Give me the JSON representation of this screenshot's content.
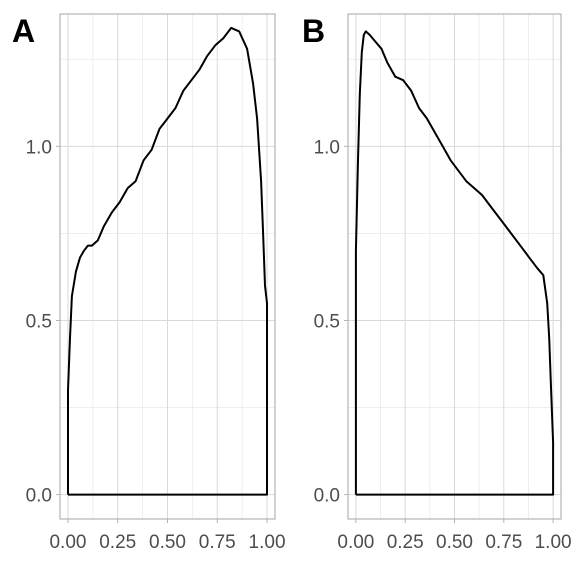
{
  "chart_data": [
    {
      "type": "line",
      "panel_tag": "A",
      "xlim": [
        -0.04,
        1.04
      ],
      "ylim": [
        -0.07,
        1.38
      ],
      "x_ticks": [
        0,
        0.25,
        0.5,
        0.75,
        1
      ],
      "x_tick_labels": [
        "0.00",
        "0.25",
        "0.50",
        "0.75",
        "1.00"
      ],
      "y_ticks": [
        0,
        0.5,
        1
      ],
      "y_tick_labels": [
        "0.0",
        "0.5",
        "1.0"
      ],
      "grid": true,
      "x": [
        0,
        0,
        0.01,
        0.02,
        0.04,
        0.06,
        0.08,
        0.1,
        0.12,
        0.15,
        0.18,
        0.22,
        0.26,
        0.3,
        0.34,
        0.38,
        0.42,
        0.46,
        0.5,
        0.54,
        0.58,
        0.62,
        0.66,
        0.7,
        0.74,
        0.78,
        0.82,
        0.86,
        0.9,
        0.93,
        0.95,
        0.97,
        0.98,
        0.99,
        1,
        1,
        0
      ],
      "y": [
        0,
        0.3,
        0.45,
        0.57,
        0.64,
        0.68,
        0.7,
        0.715,
        0.715,
        0.73,
        0.77,
        0.81,
        0.84,
        0.88,
        0.9,
        0.96,
        0.99,
        1.05,
        1.08,
        1.11,
        1.16,
        1.19,
        1.22,
        1.26,
        1.29,
        1.31,
        1.34,
        1.33,
        1.28,
        1.18,
        1.08,
        0.9,
        0.75,
        0.6,
        0.55,
        0,
        0
      ]
    },
    {
      "type": "line",
      "panel_tag": "B",
      "xlim": [
        -0.04,
        1.04
      ],
      "ylim": [
        -0.07,
        1.38
      ],
      "x_ticks": [
        0,
        0.25,
        0.5,
        0.75,
        1
      ],
      "x_tick_labels": [
        "0.00",
        "0.25",
        "0.50",
        "0.75",
        "1.00"
      ],
      "y_ticks": [
        0,
        0.5,
        1
      ],
      "y_tick_labels": [
        "0.0",
        "0.5",
        "1.0"
      ],
      "grid": true,
      "x": [
        0,
        0,
        0.01,
        0.02,
        0.03,
        0.04,
        0.05,
        0.07,
        0.1,
        0.13,
        0.16,
        0.2,
        0.24,
        0.28,
        0.32,
        0.36,
        0.4,
        0.44,
        0.48,
        0.52,
        0.56,
        0.6,
        0.64,
        0.68,
        0.72,
        0.76,
        0.8,
        0.84,
        0.88,
        0.92,
        0.95,
        0.97,
        0.98,
        0.99,
        1,
        1,
        0
      ],
      "y": [
        0,
        0.7,
        0.95,
        1.15,
        1.27,
        1.32,
        1.33,
        1.32,
        1.3,
        1.28,
        1.24,
        1.2,
        1.19,
        1.16,
        1.11,
        1.08,
        1.04,
        1.0,
        0.96,
        0.93,
        0.9,
        0.88,
        0.86,
        0.83,
        0.8,
        0.77,
        0.74,
        0.71,
        0.68,
        0.65,
        0.63,
        0.55,
        0.45,
        0.3,
        0.15,
        0,
        0
      ]
    }
  ]
}
